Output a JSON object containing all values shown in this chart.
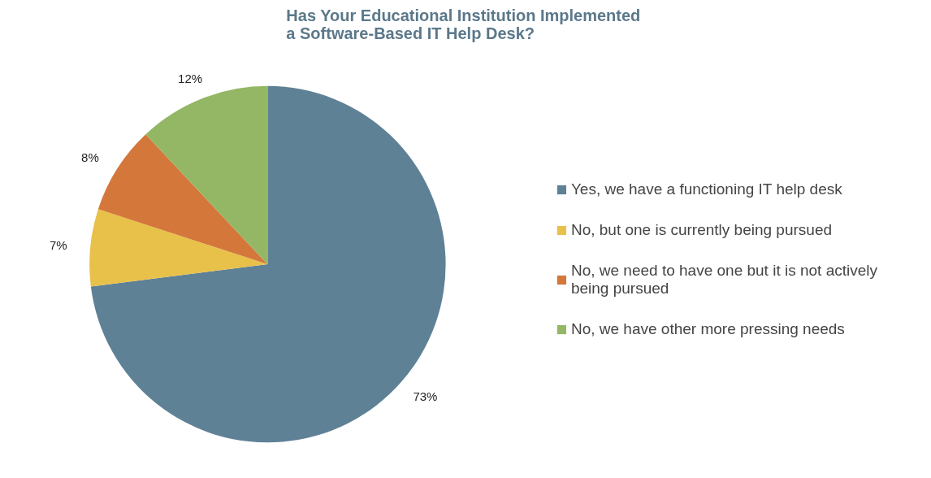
{
  "chart_data": {
    "type": "pie",
    "title": "Has Your Educational Institution Implemented a Software-Based IT Help Desk?",
    "categories": [
      "Yes, we have a functioning IT help desk",
      "No, but one is currently being pursued",
      "No, we need to have one but it is not actively being pursued",
      "No, we have other more pressing needs"
    ],
    "values": [
      73,
      7,
      8,
      12
    ],
    "colors": [
      "#5f8196",
      "#e8c14a",
      "#d4773b",
      "#94b765"
    ],
    "value_labels": [
      "73%",
      "7%",
      "8%",
      "12%"
    ],
    "legend": "right"
  }
}
